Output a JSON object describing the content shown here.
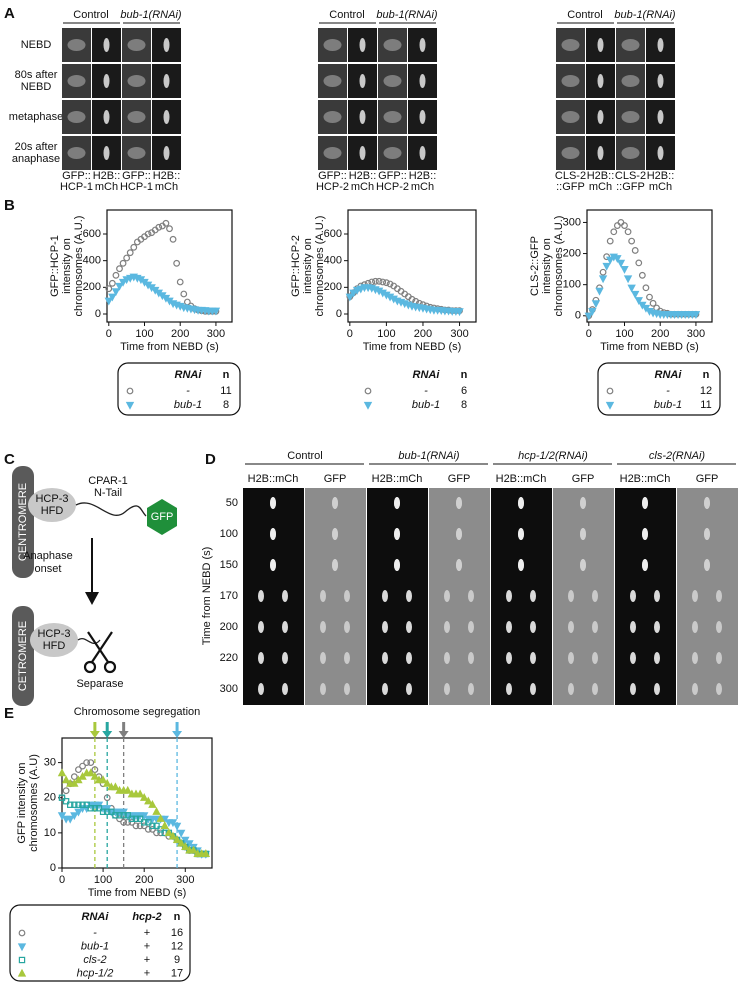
{
  "labels": [
    "A",
    "B",
    "C",
    "D",
    "E"
  ],
  "panel_a": {
    "row_labels": [
      [
        "NEBD"
      ],
      [
        "80s after",
        "NEBD"
      ],
      [
        "metaphase"
      ],
      [
        "20s after",
        "anaphase"
      ]
    ],
    "groups": [
      {
        "headers": [
          "Control",
          "bub-1(RNAi)"
        ],
        "captions": [
          [
            "GFP::",
            "HCP-1"
          ],
          [
            "H2B::",
            "mCh"
          ],
          [
            "GFP::",
            "HCP-1"
          ],
          [
            "H2B::",
            "mCh"
          ]
        ]
      },
      {
        "headers": [
          "Control",
          "bub-1(RNAi)"
        ],
        "captions": [
          [
            "GFP::",
            "HCP-2"
          ],
          [
            "H2B::",
            "mCh"
          ],
          [
            "GFP::",
            "HCP-2"
          ],
          [
            "H2B::",
            "mCh"
          ]
        ]
      },
      {
        "headers": [
          "Control",
          "bub-1(RNAi)"
        ],
        "captions": [
          [
            "CLS-2",
            "::GFP"
          ],
          [
            "H2B::",
            "mCh"
          ],
          [
            "CLS-2",
            "::GFP"
          ],
          [
            "H2B::",
            "mCh"
          ]
        ]
      }
    ]
  },
  "panel_c": {
    "top": {
      "centromere": "CENTROMERE",
      "hcp3": [
        "HCP-3",
        "HFD"
      ],
      "tail": [
        "CPAR-1",
        "N-Tail"
      ],
      "gfp": "GFP"
    },
    "arrow_label": [
      "Anaphase",
      "onset"
    ],
    "bottom": {
      "centromere": "CETROMERE",
      "hcp3": [
        "HCP-3",
        "HFD"
      ],
      "enzyme": "Separase"
    }
  },
  "panel_d": {
    "conditions": [
      "Control",
      "bub-1(RNAi)",
      "hcp-1/2(RNAi)",
      "cls-2(RNAi)"
    ],
    "channels": [
      "H2B::mCh",
      "GFP"
    ],
    "ylabel": "Time from NEBD (s)",
    "rows": [
      50,
      100,
      150,
      170,
      200,
      220,
      300
    ]
  },
  "chart_data": [
    {
      "type": "scatter",
      "ylabel": [
        "GFP::HCP-1",
        "intensity on",
        "chromosomes (A.U.)"
      ],
      "xlabel": "Time from NEBD (s)",
      "xlim": [
        -5,
        345
      ],
      "xticks": [
        0,
        100,
        200,
        300
      ],
      "ylim": [
        -60,
        780
      ],
      "yticks": [
        0,
        200,
        400,
        600
      ],
      "legend_header": [
        "RNAi",
        "n"
      ],
      "legend_box": true,
      "x": [
        0,
        10,
        20,
        30,
        40,
        50,
        60,
        70,
        80,
        90,
        100,
        110,
        120,
        130,
        140,
        150,
        160,
        170,
        180,
        190,
        200,
        210,
        220,
        230,
        240,
        250,
        260,
        270,
        280,
        290,
        300
      ],
      "series": [
        {
          "name": "-",
          "n": 11,
          "color": "#7f7f7f",
          "marker": "circle",
          "values": [
            190,
            230,
            290,
            340,
            380,
            420,
            460,
            500,
            540,
            560,
            580,
            600,
            610,
            630,
            650,
            660,
            680,
            640,
            560,
            380,
            240,
            150,
            90,
            60,
            40,
            30,
            25,
            20,
            20,
            20,
            20
          ]
        },
        {
          "name": "bub-1",
          "n": 8,
          "color": "#5bb8e0",
          "marker": "triangle-down",
          "values": [
            100,
            130,
            170,
            210,
            240,
            260,
            270,
            280,
            270,
            260,
            240,
            220,
            200,
            180,
            160,
            140,
            120,
            100,
            80,
            70,
            60,
            50,
            45,
            40,
            35,
            30,
            30,
            28,
            25,
            25,
            25
          ]
        }
      ]
    },
    {
      "type": "scatter",
      "ylabel": [
        "GFP::HCP-2",
        "intensity on",
        "chromosomes (A.U.)"
      ],
      "xlabel": "Time from NEBD (s)",
      "xlim": [
        -5,
        345
      ],
      "xticks": [
        0,
        100,
        200,
        300
      ],
      "ylim": [
        -60,
        780
      ],
      "yticks": [
        0,
        200,
        400,
        600
      ],
      "legend_header": [
        "RNAi",
        "n"
      ],
      "legend_box": false,
      "x": [
        0,
        10,
        20,
        30,
        40,
        50,
        60,
        70,
        80,
        90,
        100,
        110,
        120,
        130,
        140,
        150,
        160,
        170,
        180,
        190,
        200,
        210,
        220,
        230,
        240,
        250,
        260,
        270,
        280,
        290,
        300
      ],
      "series": [
        {
          "name": "-",
          "n": 6,
          "color": "#7f7f7f",
          "marker": "circle",
          "values": [
            130,
            160,
            190,
            210,
            220,
            230,
            240,
            245,
            245,
            240,
            235,
            225,
            210,
            190,
            170,
            150,
            130,
            110,
            95,
            80,
            70,
            60,
            50,
            45,
            40,
            35,
            30,
            30,
            25,
            25,
            25
          ]
        },
        {
          "name": "bub-1",
          "n": 8,
          "color": "#5bb8e0",
          "marker": "triangle-down",
          "values": [
            130,
            160,
            180,
            190,
            200,
            200,
            195,
            185,
            175,
            160,
            145,
            130,
            115,
            100,
            90,
            80,
            70,
            60,
            55,
            50,
            45,
            40,
            35,
            30,
            30,
            28,
            25,
            25,
            22,
            22,
            20
          ]
        }
      ]
    },
    {
      "type": "scatter",
      "ylabel": [
        "CLS-2::GFP",
        "intensity on",
        "chromosomes (A.U.)"
      ],
      "xlabel": "Time from NEBD (s)",
      "xlim": [
        -5,
        345
      ],
      "xticks": [
        0,
        100,
        200,
        300
      ],
      "ylim": [
        -20,
        340
      ],
      "yticks": [
        0,
        100,
        200,
        300
      ],
      "legend_header": [
        "RNAi",
        "n"
      ],
      "legend_box": true,
      "x": [
        0,
        10,
        20,
        30,
        40,
        50,
        60,
        70,
        80,
        90,
        100,
        110,
        120,
        130,
        140,
        150,
        160,
        170,
        180,
        190,
        200,
        210,
        220,
        230,
        240,
        250,
        260,
        270,
        280,
        290,
        300
      ],
      "series": [
        {
          "name": "-",
          "n": 12,
          "color": "#7f7f7f",
          "marker": "circle",
          "values": [
            0,
            20,
            50,
            90,
            140,
            190,
            240,
            270,
            290,
            300,
            290,
            270,
            240,
            210,
            170,
            130,
            90,
            60,
            40,
            25,
            15,
            10,
            8,
            5,
            5,
            5,
            5,
            5,
            5,
            5,
            5
          ]
        },
        {
          "name": "bub-1",
          "n": 11,
          "color": "#5bb8e0",
          "marker": "triangle-down",
          "values": [
            0,
            15,
            40,
            80,
            120,
            160,
            180,
            190,
            185,
            170,
            150,
            120,
            90,
            70,
            50,
            35,
            25,
            15,
            10,
            8,
            5,
            5,
            5,
            5,
            5,
            5,
            5,
            5,
            5,
            5,
            5
          ]
        }
      ]
    },
    {
      "type": "scatter",
      "ylabel": [
        "GFP intensity on",
        "chromosomes (A.U)"
      ],
      "xlabel": "Time from NEBD (s)",
      "annotation": "Chromosome segregation",
      "xlim": [
        0,
        365
      ],
      "xticks": [
        0,
        100,
        200,
        300
      ],
      "ylim": [
        0,
        37
      ],
      "yticks": [
        0,
        10,
        20,
        30
      ],
      "legend_header": [
        "RNAi",
        "hcp-2",
        "n"
      ],
      "legend_box": true,
      "vlines": [
        {
          "x": 80,
          "color": "#a8c83c"
        },
        {
          "x": 110,
          "color": "#27a6a0"
        },
        {
          "x": 150,
          "color": "#7f7f7f"
        },
        {
          "x": 280,
          "color": "#5bb8e0"
        }
      ],
      "x": [
        0,
        10,
        20,
        30,
        40,
        50,
        60,
        70,
        80,
        90,
        100,
        110,
        120,
        130,
        140,
        150,
        160,
        170,
        180,
        190,
        200,
        210,
        220,
        230,
        240,
        250,
        260,
        270,
        280,
        290,
        300,
        310,
        320,
        330,
        340,
        350
      ],
      "series": [
        {
          "name": "-",
          "hcp2": "+",
          "n": 16,
          "color": "#7f7f7f",
          "marker": "circle",
          "values": [
            20,
            22,
            24,
            26,
            28,
            29,
            30,
            30,
            28,
            26,
            24,
            20,
            17,
            15,
            14,
            13,
            13,
            13,
            12,
            12,
            12,
            11,
            11,
            10,
            10,
            10,
            9,
            9,
            8,
            7,
            6,
            5,
            5,
            4,
            4,
            4
          ]
        },
        {
          "name": "bub-1",
          "hcp2": "+",
          "n": 12,
          "color": "#5bb8e0",
          "marker": "triangle-down",
          "values": [
            15,
            14,
            14,
            15,
            16,
            17,
            17,
            18,
            18,
            18,
            17,
            17,
            16,
            16,
            16,
            16,
            15,
            15,
            15,
            15,
            15,
            14,
            14,
            14,
            14,
            14,
            13,
            13,
            12,
            10,
            8,
            7,
            6,
            5,
            4,
            4
          ]
        },
        {
          "name": "cls-2",
          "hcp2": "+",
          "n": 9,
          "color": "#27a6a0",
          "marker": "square",
          "values": [
            20,
            19,
            18,
            18,
            18,
            18,
            18,
            17,
            17,
            17,
            16,
            16,
            16,
            15,
            15,
            15,
            15,
            14,
            14,
            14,
            13,
            13,
            12,
            12,
            11,
            10,
            10,
            9,
            8,
            7,
            6,
            5,
            5,
            4,
            4,
            4
          ]
        },
        {
          "name": "hcp-1/2",
          "hcp2": "+",
          "n": 17,
          "color": "#a8c83c",
          "marker": "triangle-up",
          "values": [
            27,
            25,
            24,
            24,
            25,
            26,
            27,
            27,
            26,
            25,
            25,
            24,
            23,
            23,
            22,
            22,
            22,
            21,
            21,
            21,
            20,
            19,
            18,
            16,
            14,
            12,
            10,
            9,
            8,
            7,
            6,
            5,
            5,
            4,
            4,
            4
          ]
        }
      ]
    }
  ]
}
